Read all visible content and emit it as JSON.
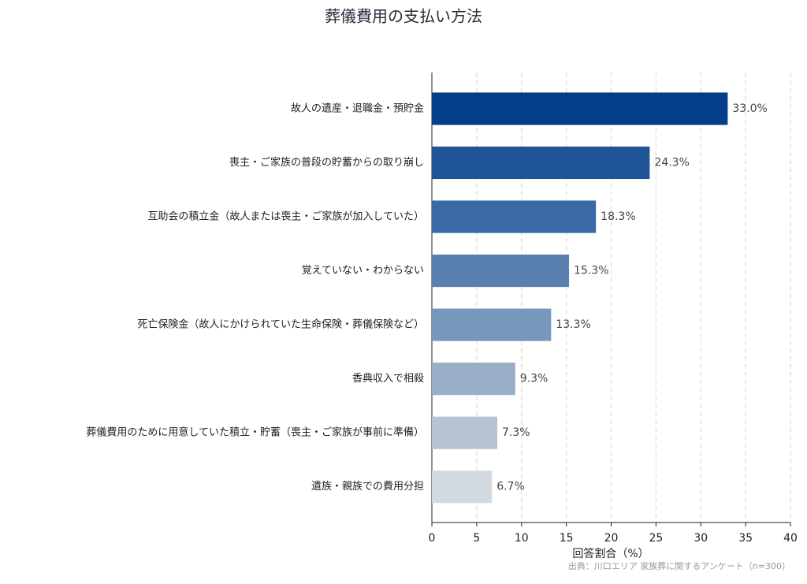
{
  "chart_data": {
    "type": "barh",
    "title": "葬儀費用の支払い方法",
    "categories": [
      "故人の遺産・退職金・預貯金",
      "喪主・ご家族の普段の貯蓄からの取り崩し",
      "互助会の積立金（故人または喪主・ご家族が加入していた）",
      "覚えていない・わからない",
      "死亡保険金（故人にかけられていた生命保険・葬儀保険など）",
      "香典収入で相殺",
      "葬儀費用のために用意していた積立・貯蓄（喪主・ご家族が事前に準備）",
      "遺族・親族での費用分担"
    ],
    "values": [
      33.0,
      24.3,
      18.3,
      15.3,
      13.3,
      9.3,
      7.3,
      6.7
    ],
    "value_labels": [
      "33.0%",
      "24.3%",
      "18.3%",
      "15.3%",
      "13.3%",
      "9.3%",
      "7.3%",
      "6.7%"
    ],
    "colors": [
      "#023e8a",
      "#1f5499",
      "#3a6aa6",
      "#5a80b2",
      "#7897bc",
      "#98aec6",
      "#b6c4d2",
      "#d3dadf"
    ],
    "xlim": [
      0,
      40
    ],
    "xticks": [
      0,
      5,
      10,
      15,
      20,
      25,
      30,
      35,
      40
    ],
    "grid": true,
    "xlabel": "回答割合（%）",
    "source": "出典：川口エリア 家族葬に関するアンケート（n=300）"
  }
}
